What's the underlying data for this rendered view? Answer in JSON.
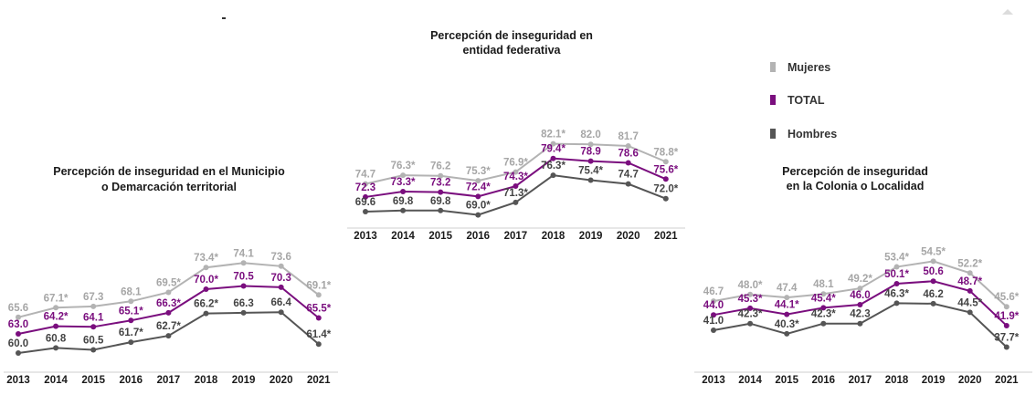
{
  "legend": {
    "items": [
      {
        "label": "Mujeres",
        "color": "#b3b3b3"
      },
      {
        "label": "TOTAL",
        "color": "#7a0e7e"
      },
      {
        "label": "Hombres",
        "color": "#555555"
      }
    ]
  },
  "colors": {
    "mujeres": "#b3b3b3",
    "total": "#7a0e7e",
    "hombres": "#555555",
    "mujeres_label": "#a6a6a6",
    "total_label": "#7a0e7e",
    "hombres_label": "#444444"
  },
  "chart_data": [
    {
      "type": "line",
      "title_lines": [
        "Percepción de inseguridad en el  Municipio",
        "o Demarcación territorial"
      ],
      "categories": [
        "2013",
        "2014",
        "2015",
        "2016",
        "2017",
        "2018",
        "2019",
        "2020",
        "2021"
      ],
      "series": [
        {
          "name": "Mujeres",
          "values": [
            65.6,
            67.1,
            67.3,
            68.1,
            69.5,
            73.4,
            74.1,
            73.6,
            69.1
          ],
          "labels": [
            "65.6",
            "67.1*",
            "67.3",
            "68.1",
            "69.5*",
            "73.4*",
            "74.1",
            "73.6",
            "69.1*"
          ]
        },
        {
          "name": "TOTAL",
          "values": [
            63.0,
            64.2,
            64.1,
            65.1,
            66.3,
            70.0,
            70.5,
            70.3,
            65.5
          ],
          "labels": [
            "63.0",
            "64.2*",
            "64.1",
            "65.1*",
            "66.3*",
            "70.0*",
            "70.5",
            "70.3",
            "65.5*"
          ]
        },
        {
          "name": "Hombres",
          "values": [
            60.0,
            60.8,
            60.5,
            61.7,
            62.7,
            66.2,
            66.3,
            66.4,
            61.4
          ],
          "labels": [
            "60.0",
            "60.8",
            "60.5",
            "61.7*",
            "62.7*",
            "66.2*",
            "66.3",
            "66.4",
            "61.4*"
          ]
        }
      ]
    },
    {
      "type": "line",
      "title_lines": [
        "Percepción de inseguridad en",
        "entidad federativa"
      ],
      "categories": [
        "2013",
        "2014",
        "2015",
        "2016",
        "2017",
        "2018",
        "2019",
        "2020",
        "2021"
      ],
      "series": [
        {
          "name": "Mujeres",
          "values": [
            74.7,
            76.3,
            76.2,
            75.3,
            76.9,
            82.1,
            82.0,
            81.7,
            78.8
          ],
          "labels": [
            "74.7",
            "76.3*",
            "76.2",
            "75.3*",
            "76.9*",
            "82.1*",
            "82.0",
            "81.7",
            "78.8*"
          ]
        },
        {
          "name": "TOTAL",
          "values": [
            72.3,
            73.3,
            73.2,
            72.4,
            74.3,
            79.4,
            78.9,
            78.6,
            75.6
          ],
          "labels": [
            "72.3",
            "73.3*",
            "73.2",
            "72.4*",
            "74.3*",
            "79.4*",
            "78.9",
            "78.6",
            "75.6*"
          ]
        },
        {
          "name": "Hombres",
          "values": [
            69.6,
            69.8,
            69.8,
            69.0,
            71.3,
            76.3,
            75.4,
            74.7,
            72.0
          ],
          "labels": [
            "69.6",
            "69.8",
            "69.8",
            "69.0*",
            "71.3*",
            "76.3*",
            "75.4*",
            "74.7",
            "72.0*"
          ]
        }
      ]
    },
    {
      "type": "line",
      "title_lines": [
        "Percepción de inseguridad",
        "en la Colonia o Localidad"
      ],
      "categories": [
        "2013",
        "2014",
        "2015",
        "2016",
        "2017",
        "2018",
        "2019",
        "2020",
        "2021"
      ],
      "series": [
        {
          "name": "Mujeres",
          "values": [
            46.7,
            48.0,
            47.4,
            48.1,
            49.2,
            53.4,
            54.5,
            52.2,
            45.6
          ],
          "labels": [
            "46.7",
            "48.0*",
            "47.4",
            "48.1",
            "49.2*",
            "53.4*",
            "54.5*",
            "52.2*",
            "45.6*"
          ]
        },
        {
          "name": "TOTAL",
          "values": [
            44.0,
            45.3,
            44.1,
            45.4,
            46.0,
            50.1,
            50.6,
            48.7,
            41.9
          ],
          "labels": [
            "44.0",
            "45.3*",
            "44.1*",
            "45.4*",
            "46.0",
            "50.1*",
            "50.6",
            "48.7*",
            "41.9*"
          ]
        },
        {
          "name": "Hombres",
          "values": [
            41.0,
            42.3,
            40.3,
            42.3,
            42.3,
            46.3,
            46.2,
            44.5,
            37.7
          ],
          "labels": [
            "41.0",
            "42.3*",
            "40.3*",
            "42.3*",
            "42.3",
            "46.3*",
            "46.2",
            "44.5*",
            "37.7*"
          ]
        }
      ]
    }
  ]
}
